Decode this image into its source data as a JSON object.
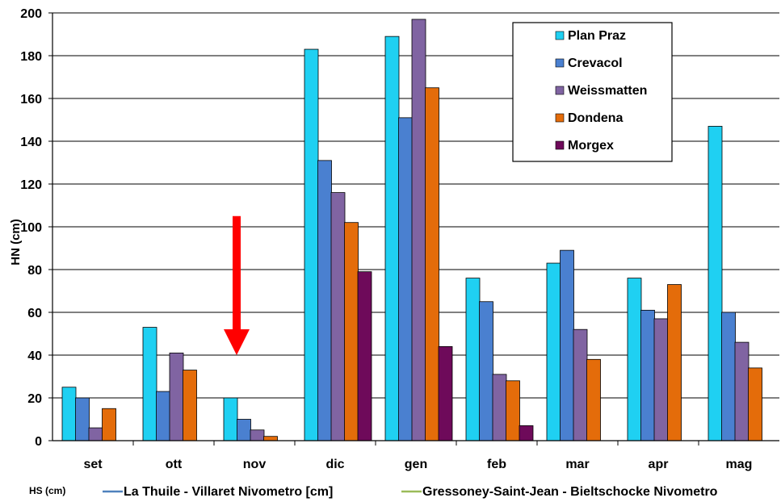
{
  "chart_data": {
    "type": "bar",
    "title": "",
    "xlabel": "",
    "ylabel": "HN (cm)",
    "ylim": [
      0,
      200
    ],
    "yticks": [
      0,
      20,
      40,
      60,
      80,
      100,
      120,
      140,
      160,
      180,
      200
    ],
    "grid": true,
    "legend_position": "top-right",
    "categories": [
      "set",
      "ott",
      "nov",
      "dic",
      "gen",
      "feb",
      "mar",
      "apr",
      "mag"
    ],
    "series": [
      {
        "name": "Plan Praz",
        "color": "#1FD0F2",
        "values": [
          25,
          53,
          20,
          183,
          189,
          76,
          83,
          76,
          147
        ]
      },
      {
        "name": "Crevacol",
        "color": "#4A80D0",
        "values": [
          20,
          23,
          10,
          131,
          151,
          65,
          89,
          61,
          60
        ]
      },
      {
        "name": "Weissmatten",
        "color": "#8064A2",
        "values": [
          6,
          41,
          5,
          116,
          197,
          31,
          52,
          57,
          46
        ]
      },
      {
        "name": "Dondena",
        "color": "#E46C0A",
        "values": [
          15,
          33,
          2,
          102,
          165,
          28,
          38,
          73,
          34
        ]
      },
      {
        "name": "Morgex",
        "color": "#6E0A5A",
        "values": [
          null,
          null,
          null,
          79,
          44,
          7,
          null,
          null,
          null
        ]
      }
    ],
    "annotation": {
      "type": "arrow",
      "color": "#FF0000",
      "category": "nov",
      "from_value": 105,
      "to_value": 40
    }
  },
  "footer": {
    "left_label": "HS (cm)",
    "items": [
      {
        "label": "La Thuile - Villaret Nivometro [cm]",
        "color": "#4F81BD"
      },
      {
        "label": "Gressoney-Saint-Jean - Bieltschocke Nivometro",
        "color": "#9BBB59"
      }
    ]
  }
}
